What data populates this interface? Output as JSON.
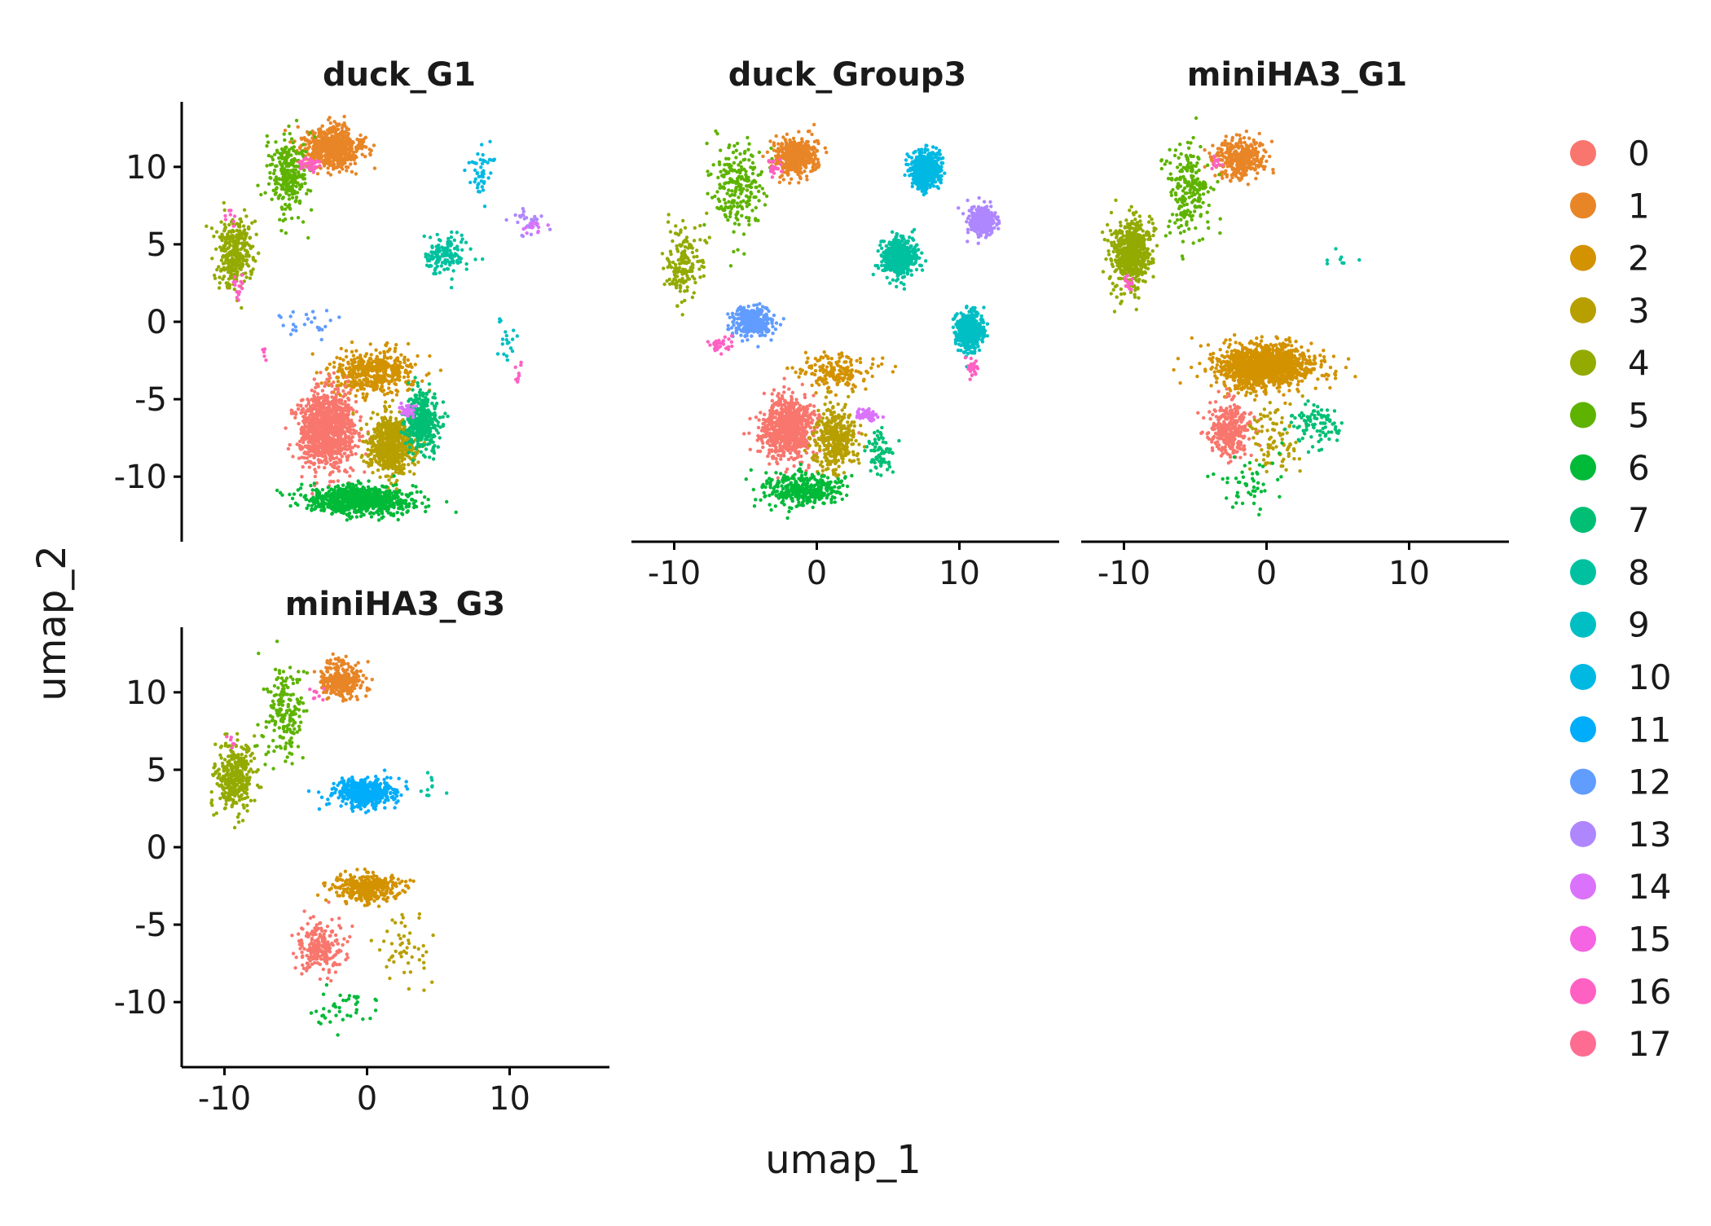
{
  "chart_data": {
    "type": "scatter",
    "xlabel": "umap_1",
    "ylabel": "umap_2",
    "xlim": [
      -13,
      17
    ],
    "ylim": [
      -14.2,
      14.2
    ],
    "x_ticks": [
      {
        "value": -10,
        "label": "-10"
      },
      {
        "value": 0,
        "label": "0"
      },
      {
        "value": 10,
        "label": "10"
      }
    ],
    "y_ticks": [
      {
        "value": 10,
        "label": "10"
      },
      {
        "value": 5,
        "label": "5"
      },
      {
        "value": 0,
        "label": "0"
      },
      {
        "value": -5,
        "label": "-5"
      },
      {
        "value": -10,
        "label": "-10"
      }
    ],
    "legend_position": "right",
    "clusters": [
      {
        "name": "0",
        "color": "#F8766D"
      },
      {
        "name": "1",
        "color": "#E88526"
      },
      {
        "name": "2",
        "color": "#D39200"
      },
      {
        "name": "3",
        "color": "#B79F00"
      },
      {
        "name": "4",
        "color": "#93AA00"
      },
      {
        "name": "5",
        "color": "#5EB300"
      },
      {
        "name": "6",
        "color": "#00BA38"
      },
      {
        "name": "7",
        "color": "#00BF74"
      },
      {
        "name": "8",
        "color": "#00C19F"
      },
      {
        "name": "9",
        "color": "#00BFC4"
      },
      {
        "name": "10",
        "color": "#00B9E3"
      },
      {
        "name": "11",
        "color": "#00ADFA"
      },
      {
        "name": "12",
        "color": "#619CFF"
      },
      {
        "name": "13",
        "color": "#AE87FF"
      },
      {
        "name": "14",
        "color": "#DB72FB"
      },
      {
        "name": "15",
        "color": "#F564E3"
      },
      {
        "name": "16",
        "color": "#FF61C3"
      },
      {
        "name": "17",
        "color": "#FF6C91"
      }
    ],
    "panels": [
      {
        "title": "duck_G1",
        "groups": [
          {
            "cluster": "1",
            "cx": -2.5,
            "cy": 11.2,
            "sx": 1.4,
            "sy": 0.9,
            "n": 650
          },
          {
            "cluster": "5",
            "cx": -5.5,
            "cy": 9.5,
            "sx": 0.9,
            "sy": 1.8,
            "n": 260
          },
          {
            "cluster": "16",
            "cx": -4,
            "cy": 10.2,
            "sx": 0.5,
            "sy": 0.4,
            "n": 40
          },
          {
            "cluster": "4",
            "cx": -9.3,
            "cy": 4.5,
            "sx": 0.9,
            "sy": 1.6,
            "n": 320
          },
          {
            "cluster": "16",
            "cx": -9,
            "cy": 2.3,
            "sx": 0.3,
            "sy": 0.5,
            "n": 15
          },
          {
            "cluster": "16",
            "cx": -9.5,
            "cy": 6.9,
            "sx": 0.3,
            "sy": 0.3,
            "n": 8
          },
          {
            "cluster": "10",
            "cx": 8,
            "cy": 9.8,
            "sx": 0.6,
            "sy": 1.1,
            "n": 45
          },
          {
            "cluster": "13",
            "cx": 11.3,
            "cy": 6.5,
            "sx": 0.7,
            "sy": 0.5,
            "n": 30
          },
          {
            "cluster": "14",
            "cx": 11.8,
            "cy": 6.2,
            "sx": 0.5,
            "sy": 0.4,
            "n": 15
          },
          {
            "cluster": "8",
            "cx": 5.5,
            "cy": 4.3,
            "sx": 1.0,
            "sy": 0.8,
            "n": 150
          },
          {
            "cluster": "12",
            "cx": -4,
            "cy": 0,
            "sx": 1.4,
            "sy": 0.6,
            "n": 25
          },
          {
            "cluster": "16",
            "cx": -7.2,
            "cy": -2,
            "sx": 0.3,
            "sy": 0.3,
            "n": 5
          },
          {
            "cluster": "9",
            "cx": 9.8,
            "cy": -1,
            "sx": 0.5,
            "sy": 1.3,
            "n": 20
          },
          {
            "cluster": "16",
            "cx": 10.5,
            "cy": -3.5,
            "sx": 0.3,
            "sy": 0.4,
            "n": 10
          },
          {
            "cluster": "2",
            "cx": 0.3,
            "cy": -3.3,
            "sx": 2.0,
            "sy": 1.0,
            "n": 450
          },
          {
            "cluster": "0",
            "cx": -2.8,
            "cy": -7,
            "sx": 1.3,
            "sy": 1.6,
            "n": 1100
          },
          {
            "cluster": "3",
            "cx": 1.7,
            "cy": -8,
            "sx": 1.1,
            "sy": 1.2,
            "n": 650
          },
          {
            "cluster": "7",
            "cx": 3.8,
            "cy": -6.5,
            "sx": 0.8,
            "sy": 1.3,
            "n": 380
          },
          {
            "cluster": "14",
            "cx": 2.8,
            "cy": -5.8,
            "sx": 0.4,
            "sy": 0.3,
            "n": 35
          },
          {
            "cluster": "6",
            "cx": -0.5,
            "cy": -11.5,
            "sx": 2.3,
            "sy": 0.6,
            "n": 900
          }
        ]
      },
      {
        "title": "duck_Group3",
        "groups": [
          {
            "cluster": "1",
            "cx": -1.5,
            "cy": 10.7,
            "sx": 1.0,
            "sy": 0.8,
            "n": 450
          },
          {
            "cluster": "5",
            "cx": -5.5,
            "cy": 8.7,
            "sx": 1.2,
            "sy": 1.8,
            "n": 220
          },
          {
            "cluster": "16",
            "cx": -3,
            "cy": 10,
            "sx": 0.4,
            "sy": 0.4,
            "n": 20
          },
          {
            "cluster": "4",
            "cx": -9.3,
            "cy": 3.8,
            "sx": 0.9,
            "sy": 1.6,
            "n": 160
          },
          {
            "cluster": "10",
            "cx": 7.7,
            "cy": 9.8,
            "sx": 0.7,
            "sy": 0.8,
            "n": 550
          },
          {
            "cluster": "13",
            "cx": 11.6,
            "cy": 6.5,
            "sx": 0.6,
            "sy": 0.6,
            "n": 320
          },
          {
            "cluster": "8",
            "cx": 5.8,
            "cy": 4.2,
            "sx": 0.8,
            "sy": 0.8,
            "n": 500
          },
          {
            "cluster": "12",
            "cx": -4.5,
            "cy": 0,
            "sx": 0.9,
            "sy": 0.6,
            "n": 380
          },
          {
            "cluster": "16",
            "cx": -6.8,
            "cy": -1.5,
            "sx": 0.6,
            "sy": 0.3,
            "n": 35
          },
          {
            "cluster": "9",
            "cx": 10.7,
            "cy": -0.6,
            "sx": 0.6,
            "sy": 0.8,
            "n": 550
          },
          {
            "cluster": "16",
            "cx": 10.9,
            "cy": -3,
            "sx": 0.2,
            "sy": 0.5,
            "n": 25
          },
          {
            "cluster": "2",
            "cx": 1.5,
            "cy": -3.2,
            "sx": 2.0,
            "sy": 0.8,
            "n": 180
          },
          {
            "cluster": "0",
            "cx": -2,
            "cy": -6.9,
            "sx": 1.2,
            "sy": 1.3,
            "n": 800
          },
          {
            "cluster": "3",
            "cx": 1.3,
            "cy": -7.5,
            "sx": 1.0,
            "sy": 1.4,
            "n": 350
          },
          {
            "cluster": "14",
            "cx": 3.5,
            "cy": -6,
            "sx": 0.5,
            "sy": 0.3,
            "n": 50
          },
          {
            "cluster": "7",
            "cx": 4.5,
            "cy": -8.5,
            "sx": 0.7,
            "sy": 1.0,
            "n": 70
          },
          {
            "cluster": "6",
            "cx": -1,
            "cy": -10.8,
            "sx": 2.0,
            "sy": 0.7,
            "n": 350
          }
        ]
      },
      {
        "title": "miniHA3_G1",
        "groups": [
          {
            "cluster": "1",
            "cx": -2,
            "cy": 10.5,
            "sx": 1.2,
            "sy": 0.9,
            "n": 350
          },
          {
            "cluster": "5",
            "cx": -5.5,
            "cy": 8.5,
            "sx": 1.0,
            "sy": 2.0,
            "n": 230
          },
          {
            "cluster": "16",
            "cx": -3.5,
            "cy": 10.2,
            "sx": 0.4,
            "sy": 0.3,
            "n": 12
          },
          {
            "cluster": "4",
            "cx": -9.5,
            "cy": 4.5,
            "sx": 0.9,
            "sy": 1.5,
            "n": 600
          },
          {
            "cluster": "16",
            "cx": -9.8,
            "cy": 2.5,
            "sx": 0.3,
            "sy": 0.3,
            "n": 15
          },
          {
            "cluster": "8",
            "cx": 5.2,
            "cy": 3.8,
            "sx": 0.8,
            "sy": 0.5,
            "n": 8
          },
          {
            "cluster": "2",
            "cx": 0,
            "cy": -2.9,
            "sx": 2.2,
            "sy": 0.9,
            "n": 1300
          },
          {
            "cluster": "0",
            "cx": -2.6,
            "cy": -7,
            "sx": 1.0,
            "sy": 1.2,
            "n": 320
          },
          {
            "cluster": "3",
            "cx": 0.6,
            "cy": -7.5,
            "sx": 1.3,
            "sy": 1.5,
            "n": 90
          },
          {
            "cluster": "7",
            "cx": 3.5,
            "cy": -6.5,
            "sx": 1.1,
            "sy": 1.0,
            "n": 90
          },
          {
            "cluster": "6",
            "cx": -1,
            "cy": -10.5,
            "sx": 1.5,
            "sy": 1.2,
            "n": 50
          }
        ]
      },
      {
        "title": "miniHA3_G3",
        "groups": [
          {
            "cluster": "1",
            "cx": -1.8,
            "cy": 10.8,
            "sx": 1.0,
            "sy": 0.8,
            "n": 300
          },
          {
            "cluster": "5",
            "cx": -5.8,
            "cy": 8.7,
            "sx": 1.0,
            "sy": 2.0,
            "n": 180
          },
          {
            "cluster": "16",
            "cx": -3.5,
            "cy": 9.8,
            "sx": 0.4,
            "sy": 0.3,
            "n": 8
          },
          {
            "cluster": "4",
            "cx": -9.3,
            "cy": 4.5,
            "sx": 0.9,
            "sy": 1.5,
            "n": 320
          },
          {
            "cluster": "16",
            "cx": -9.6,
            "cy": 6.8,
            "sx": 0.3,
            "sy": 0.3,
            "n": 6
          },
          {
            "cluster": "11",
            "cx": -0.2,
            "cy": 3.5,
            "sx": 1.4,
            "sy": 0.6,
            "n": 500
          },
          {
            "cluster": "8",
            "cx": 4.5,
            "cy": 4,
            "sx": 0.8,
            "sy": 0.6,
            "n": 10
          },
          {
            "cluster": "2",
            "cx": 0,
            "cy": -2.6,
            "sx": 1.6,
            "sy": 0.6,
            "n": 380
          },
          {
            "cluster": "0",
            "cx": -3.3,
            "cy": -6.5,
            "sx": 1.0,
            "sy": 1.1,
            "n": 200
          },
          {
            "cluster": "3",
            "cx": 2.5,
            "cy": -6.5,
            "sx": 1.3,
            "sy": 1.5,
            "n": 50
          },
          {
            "cluster": "6",
            "cx": -1.8,
            "cy": -10.3,
            "sx": 1.3,
            "sy": 0.9,
            "n": 40
          }
        ]
      }
    ]
  }
}
